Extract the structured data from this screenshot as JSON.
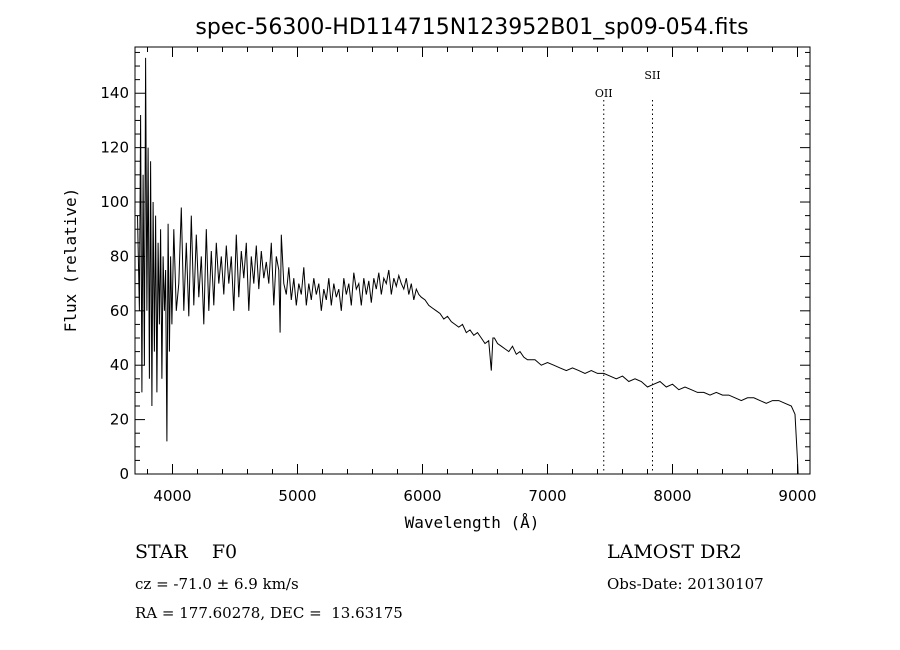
{
  "chart_data": {
    "type": "line",
    "title": "spec-56300-HD114715N123952B01_sp09-054.fits",
    "xlabel": "Wavelength (Å)",
    "ylabel": "Flux (relative)",
    "xlim": [
      3700,
      9100
    ],
    "ylim": [
      0,
      157
    ],
    "xticks": [
      4000,
      5000,
      6000,
      7000,
      8000,
      9000
    ],
    "yticks": [
      0,
      20,
      40,
      60,
      80,
      100,
      120,
      140
    ],
    "grid": false,
    "series": [
      {
        "x": [
          3720,
          3735,
          3745,
          3755,
          3765,
          3775,
          3785,
          3795,
          3805,
          3815,
          3825,
          3835,
          3845,
          3855,
          3865,
          3875,
          3885,
          3895,
          3905,
          3915,
          3925,
          3935,
          3945,
          3955,
          3965,
          3975,
          3985,
          3995,
          4010,
          4030,
          4050,
          4070,
          4090,
          4110,
          4130,
          4150,
          4170,
          4190,
          4210,
          4230,
          4250,
          4270,
          4290,
          4310,
          4330,
          4350,
          4370,
          4390,
          4410,
          4430,
          4450,
          4470,
          4490,
          4510,
          4530,
          4550,
          4570,
          4590,
          4610,
          4630,
          4650,
          4670,
          4690,
          4710,
          4730,
          4750,
          4770,
          4790,
          4810,
          4830,
          4850,
          4861,
          4870,
          4890,
          4910,
          4930,
          4950,
          4970,
          4990,
          5010,
          5030,
          5050,
          5070,
          5090,
          5110,
          5130,
          5150,
          5170,
          5190,
          5210,
          5230,
          5250,
          5270,
          5290,
          5310,
          5330,
          5350,
          5370,
          5390,
          5410,
          5430,
          5450,
          5470,
          5490,
          5510,
          5530,
          5550,
          5570,
          5590,
          5610,
          5630,
          5650,
          5670,
          5690,
          5710,
          5730,
          5750,
          5770,
          5790,
          5810,
          5830,
          5850,
          5870,
          5890,
          5910,
          5930,
          5950,
          5970,
          5990,
          6020,
          6050,
          6080,
          6110,
          6140,
          6170,
          6200,
          6230,
          6260,
          6290,
          6320,
          6350,
          6380,
          6410,
          6440,
          6470,
          6500,
          6530,
          6550,
          6563,
          6575,
          6600,
          6630,
          6660,
          6690,
          6720,
          6750,
          6780,
          6810,
          6840,
          6870,
          6900,
          6950,
          7000,
          7050,
          7100,
          7150,
          7200,
          7250,
          7300,
          7350,
          7400,
          7450,
          7500,
          7550,
          7600,
          7650,
          7700,
          7750,
          7800,
          7850,
          7900,
          7950,
          8000,
          8050,
          8100,
          8150,
          8200,
          8250,
          8300,
          8350,
          8400,
          8450,
          8500,
          8550,
          8600,
          8650,
          8700,
          8750,
          8800,
          8850,
          8900,
          8950,
          8980,
          9000,
          9005
        ],
        "y": [
          95,
          60,
          132,
          30,
          110,
          40,
          153,
          60,
          120,
          35,
          115,
          25,
          100,
          45,
          95,
          30,
          85,
          55,
          90,
          35,
          80,
          60,
          75,
          12,
          92,
          45,
          80,
          55,
          90,
          60,
          70,
          98,
          60,
          85,
          58,
          95,
          62,
          88,
          65,
          80,
          55,
          90,
          60,
          82,
          62,
          85,
          70,
          80,
          66,
          84,
          70,
          80,
          60,
          88,
          65,
          82,
          72,
          85,
          60,
          80,
          70,
          84,
          68,
          82,
          72,
          78,
          70,
          85,
          62,
          80,
          75,
          52,
          88,
          70,
          66,
          76,
          64,
          72,
          62,
          70,
          66,
          76,
          62,
          70,
          64,
          72,
          66,
          70,
          60,
          68,
          64,
          72,
          62,
          70,
          65,
          68,
          60,
          72,
          66,
          70,
          62,
          74,
          68,
          70,
          62,
          72,
          66,
          71,
          63,
          72,
          68,
          74,
          66,
          72,
          70,
          75,
          66,
          72,
          69,
          73,
          70,
          68,
          72,
          66,
          70,
          64,
          68,
          66,
          65,
          64,
          62,
          61,
          60,
          59,
          57,
          58,
          56,
          55,
          54,
          55,
          52,
          53,
          51,
          52,
          50,
          48,
          49,
          38,
          50,
          50,
          48,
          47,
          46,
          45,
          47,
          44,
          45,
          43,
          42,
          42,
          42,
          40,
          41,
          40,
          39,
          38,
          39,
          38,
          37,
          38,
          37,
          37,
          36,
          35,
          36,
          34,
          35,
          34,
          32,
          33,
          34,
          32,
          33,
          31,
          32,
          31,
          30,
          30,
          29,
          30,
          29,
          29,
          28,
          27,
          28,
          28,
          27,
          26,
          27,
          27,
          26,
          25,
          22,
          5,
          0
        ]
      }
    ],
    "annotations": [
      {
        "label": "OII",
        "x": 7450
      },
      {
        "label": "SII",
        "x": 7840
      }
    ]
  },
  "info": {
    "left_line1": "STAR    F0",
    "left_line2": "cz = -71.0 ± 6.9 km/s",
    "left_line3": "RA = 177.60278, DEC =  13.63175",
    "right_line1": "LAMOST DR2",
    "right_line2": "Obs-Date: 20130107"
  }
}
